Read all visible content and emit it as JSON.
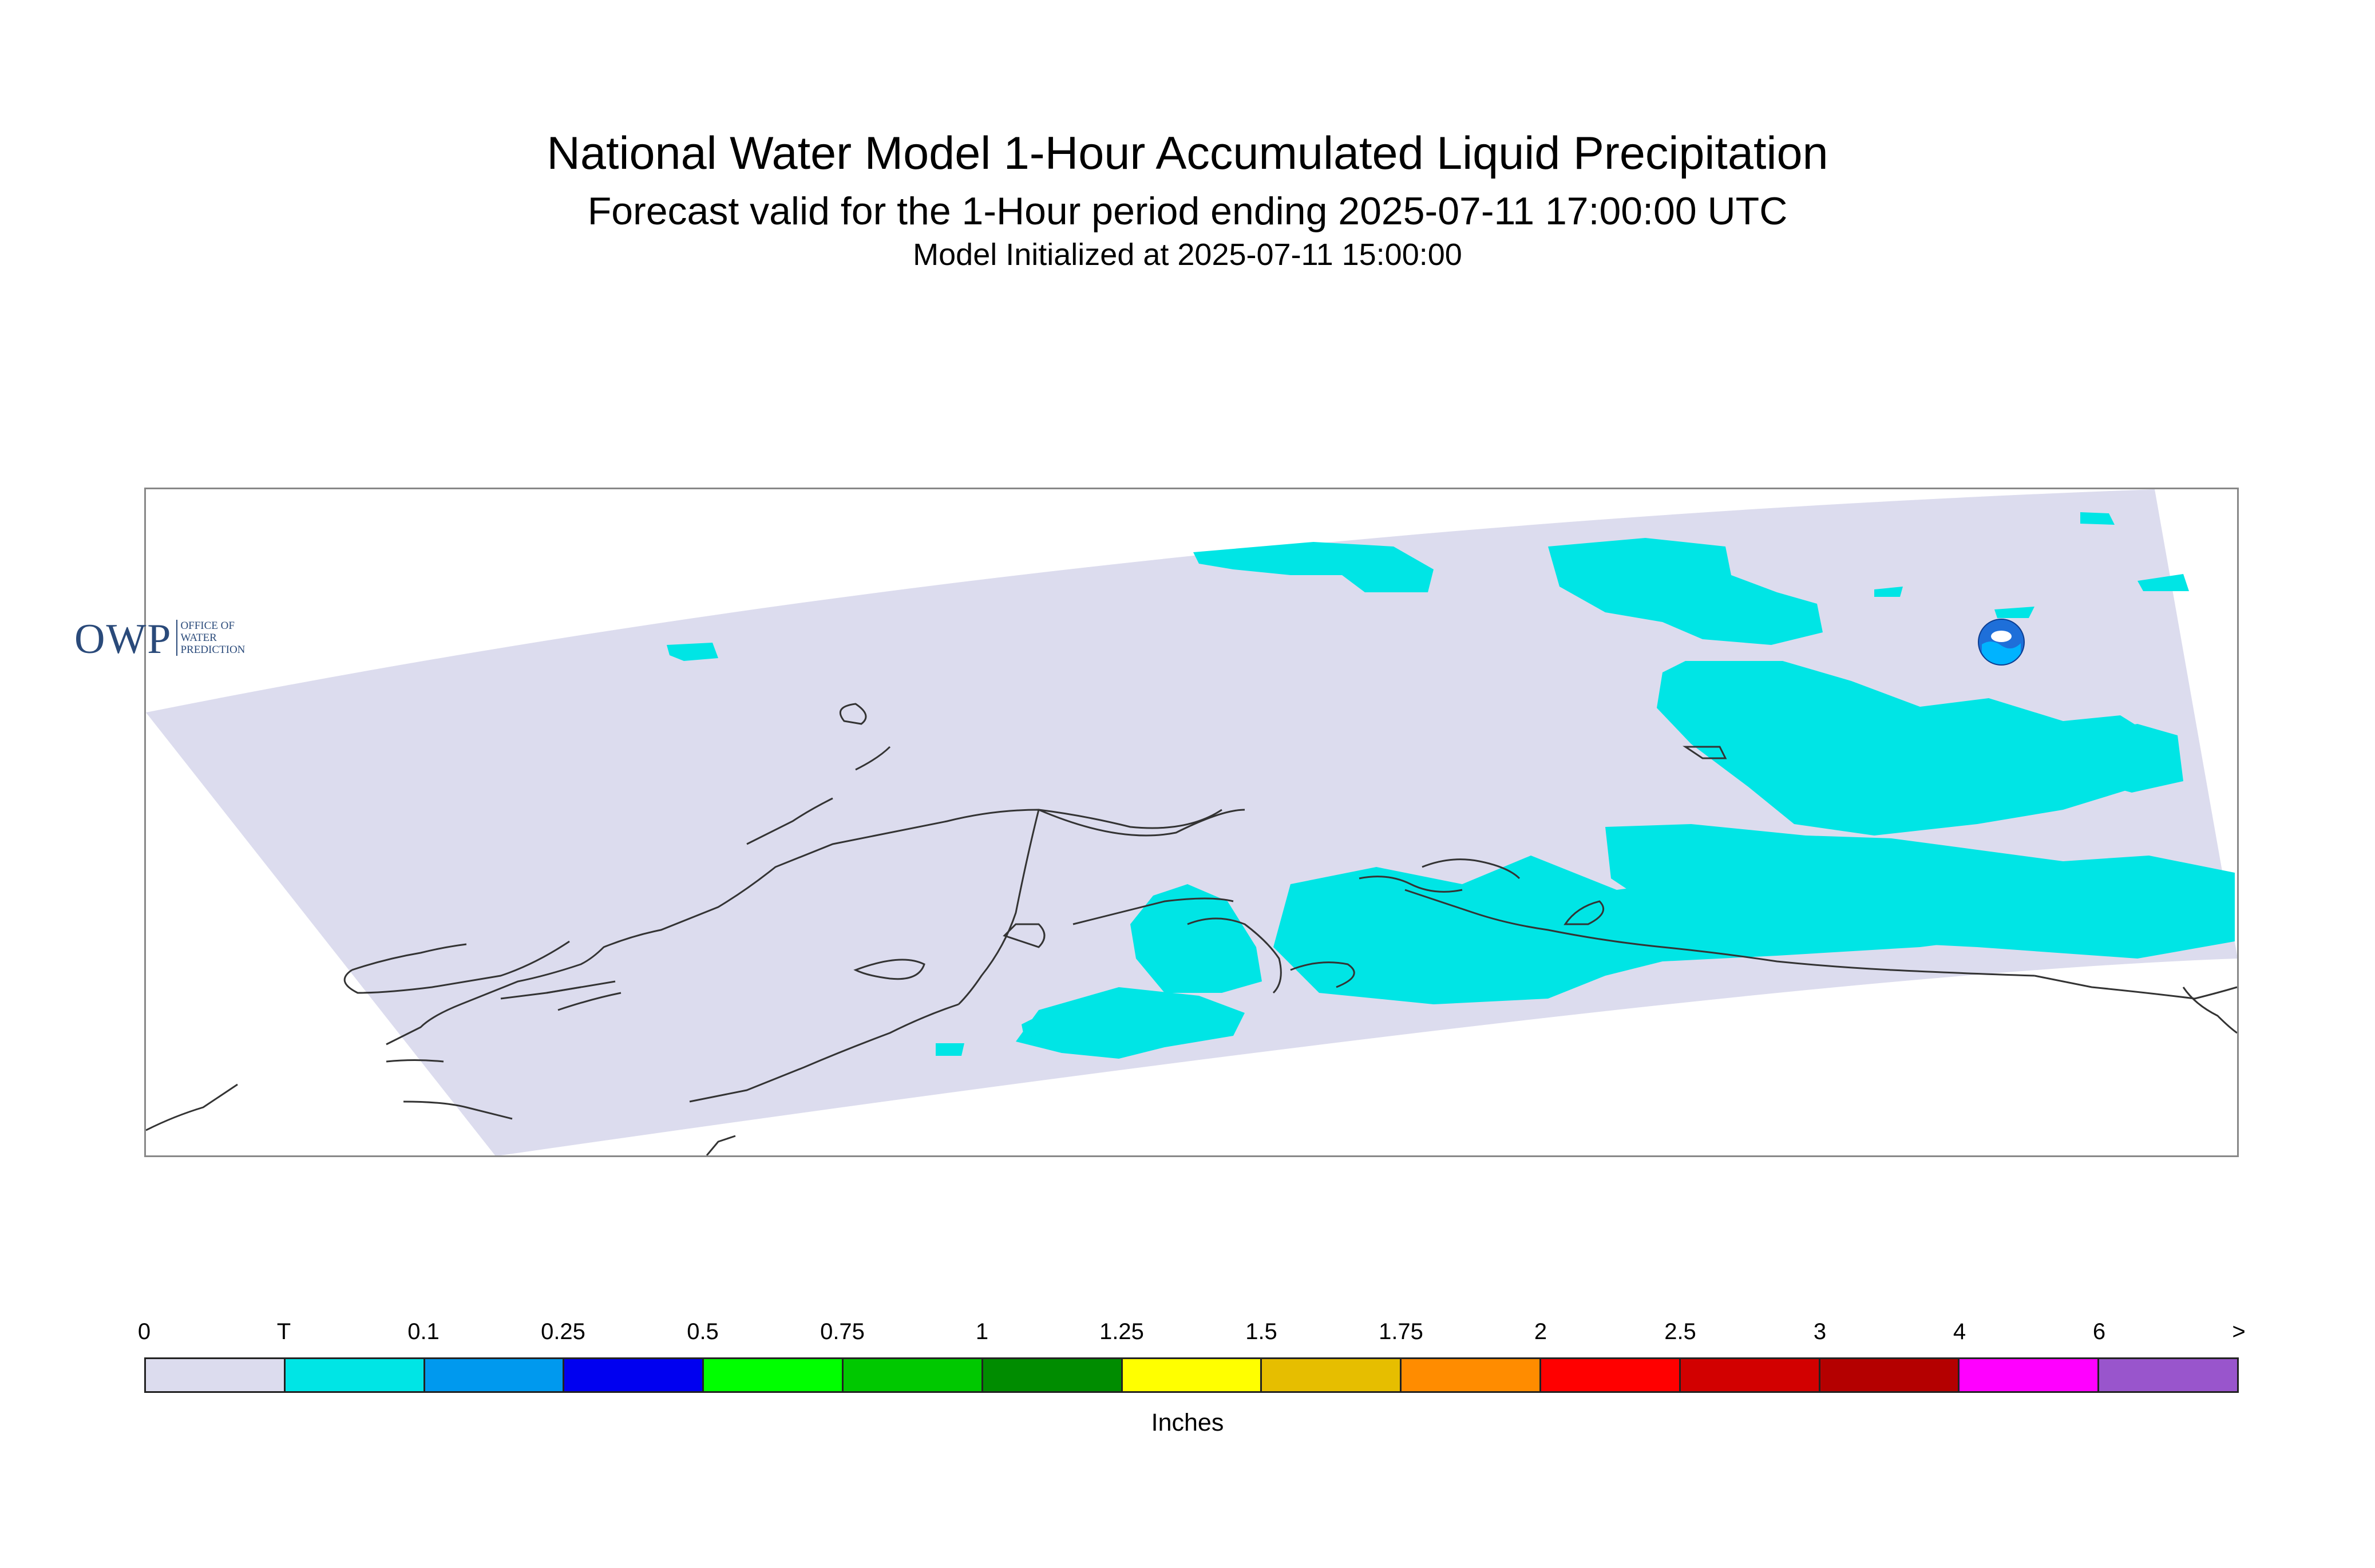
{
  "title": "National Water Model 1-Hour Accumulated Liquid Precipitation",
  "subtitle": "Forecast valid for the 1-Hour period ending 2025-07-11 17:00:00 UTC",
  "initialized": "Model Initialized at 2025-07-11 15:00:00",
  "logo": {
    "abbr": "OWP",
    "line1": "OFFICE OF",
    "line2": "WATER",
    "line3": "PREDICTION",
    "agency_icon": "noaa-logo-icon"
  },
  "colors": {
    "zero": "#dcdcee",
    "trace": "#00e5e5",
    "coast": "#333333",
    "frame": "#888888"
  },
  "legend": {
    "units": "Inches",
    "tick_labels": [
      "0",
      "T",
      "0.1",
      "0.25",
      "0.5",
      "0.75",
      "1",
      "1.25",
      "1.5",
      "1.75",
      "2",
      "2.5",
      "3",
      "4",
      "6",
      ">"
    ],
    "bins": [
      {
        "range": "0 - T",
        "color": "#dcdcee"
      },
      {
        "range": "T - 0.1",
        "color": "#00e5e5"
      },
      {
        "range": "0.1 - 0.25",
        "color": "#0099ee"
      },
      {
        "range": "0.25 - 0.5",
        "color": "#0000f0"
      },
      {
        "range": "0.5 - 0.75",
        "color": "#00ff00"
      },
      {
        "range": "0.75 - 1",
        "color": "#00c800"
      },
      {
        "range": "1 - 1.25",
        "color": "#008c00"
      },
      {
        "range": "1.25 - 1.5",
        "color": "#ffff00"
      },
      {
        "range": "1.5 - 1.75",
        "color": "#e6be00"
      },
      {
        "range": "1.75 - 2",
        "color": "#ff8c00"
      },
      {
        "range": "2 - 2.5",
        "color": "#ff0000"
      },
      {
        "range": "2.5 - 3",
        "color": "#d20000"
      },
      {
        "range": "3 - 4",
        "color": "#b40000"
      },
      {
        "range": "4 - 6",
        "color": "#ff00ff"
      },
      {
        "range": "6 - >",
        "color": "#9955cc"
      }
    ]
  }
}
